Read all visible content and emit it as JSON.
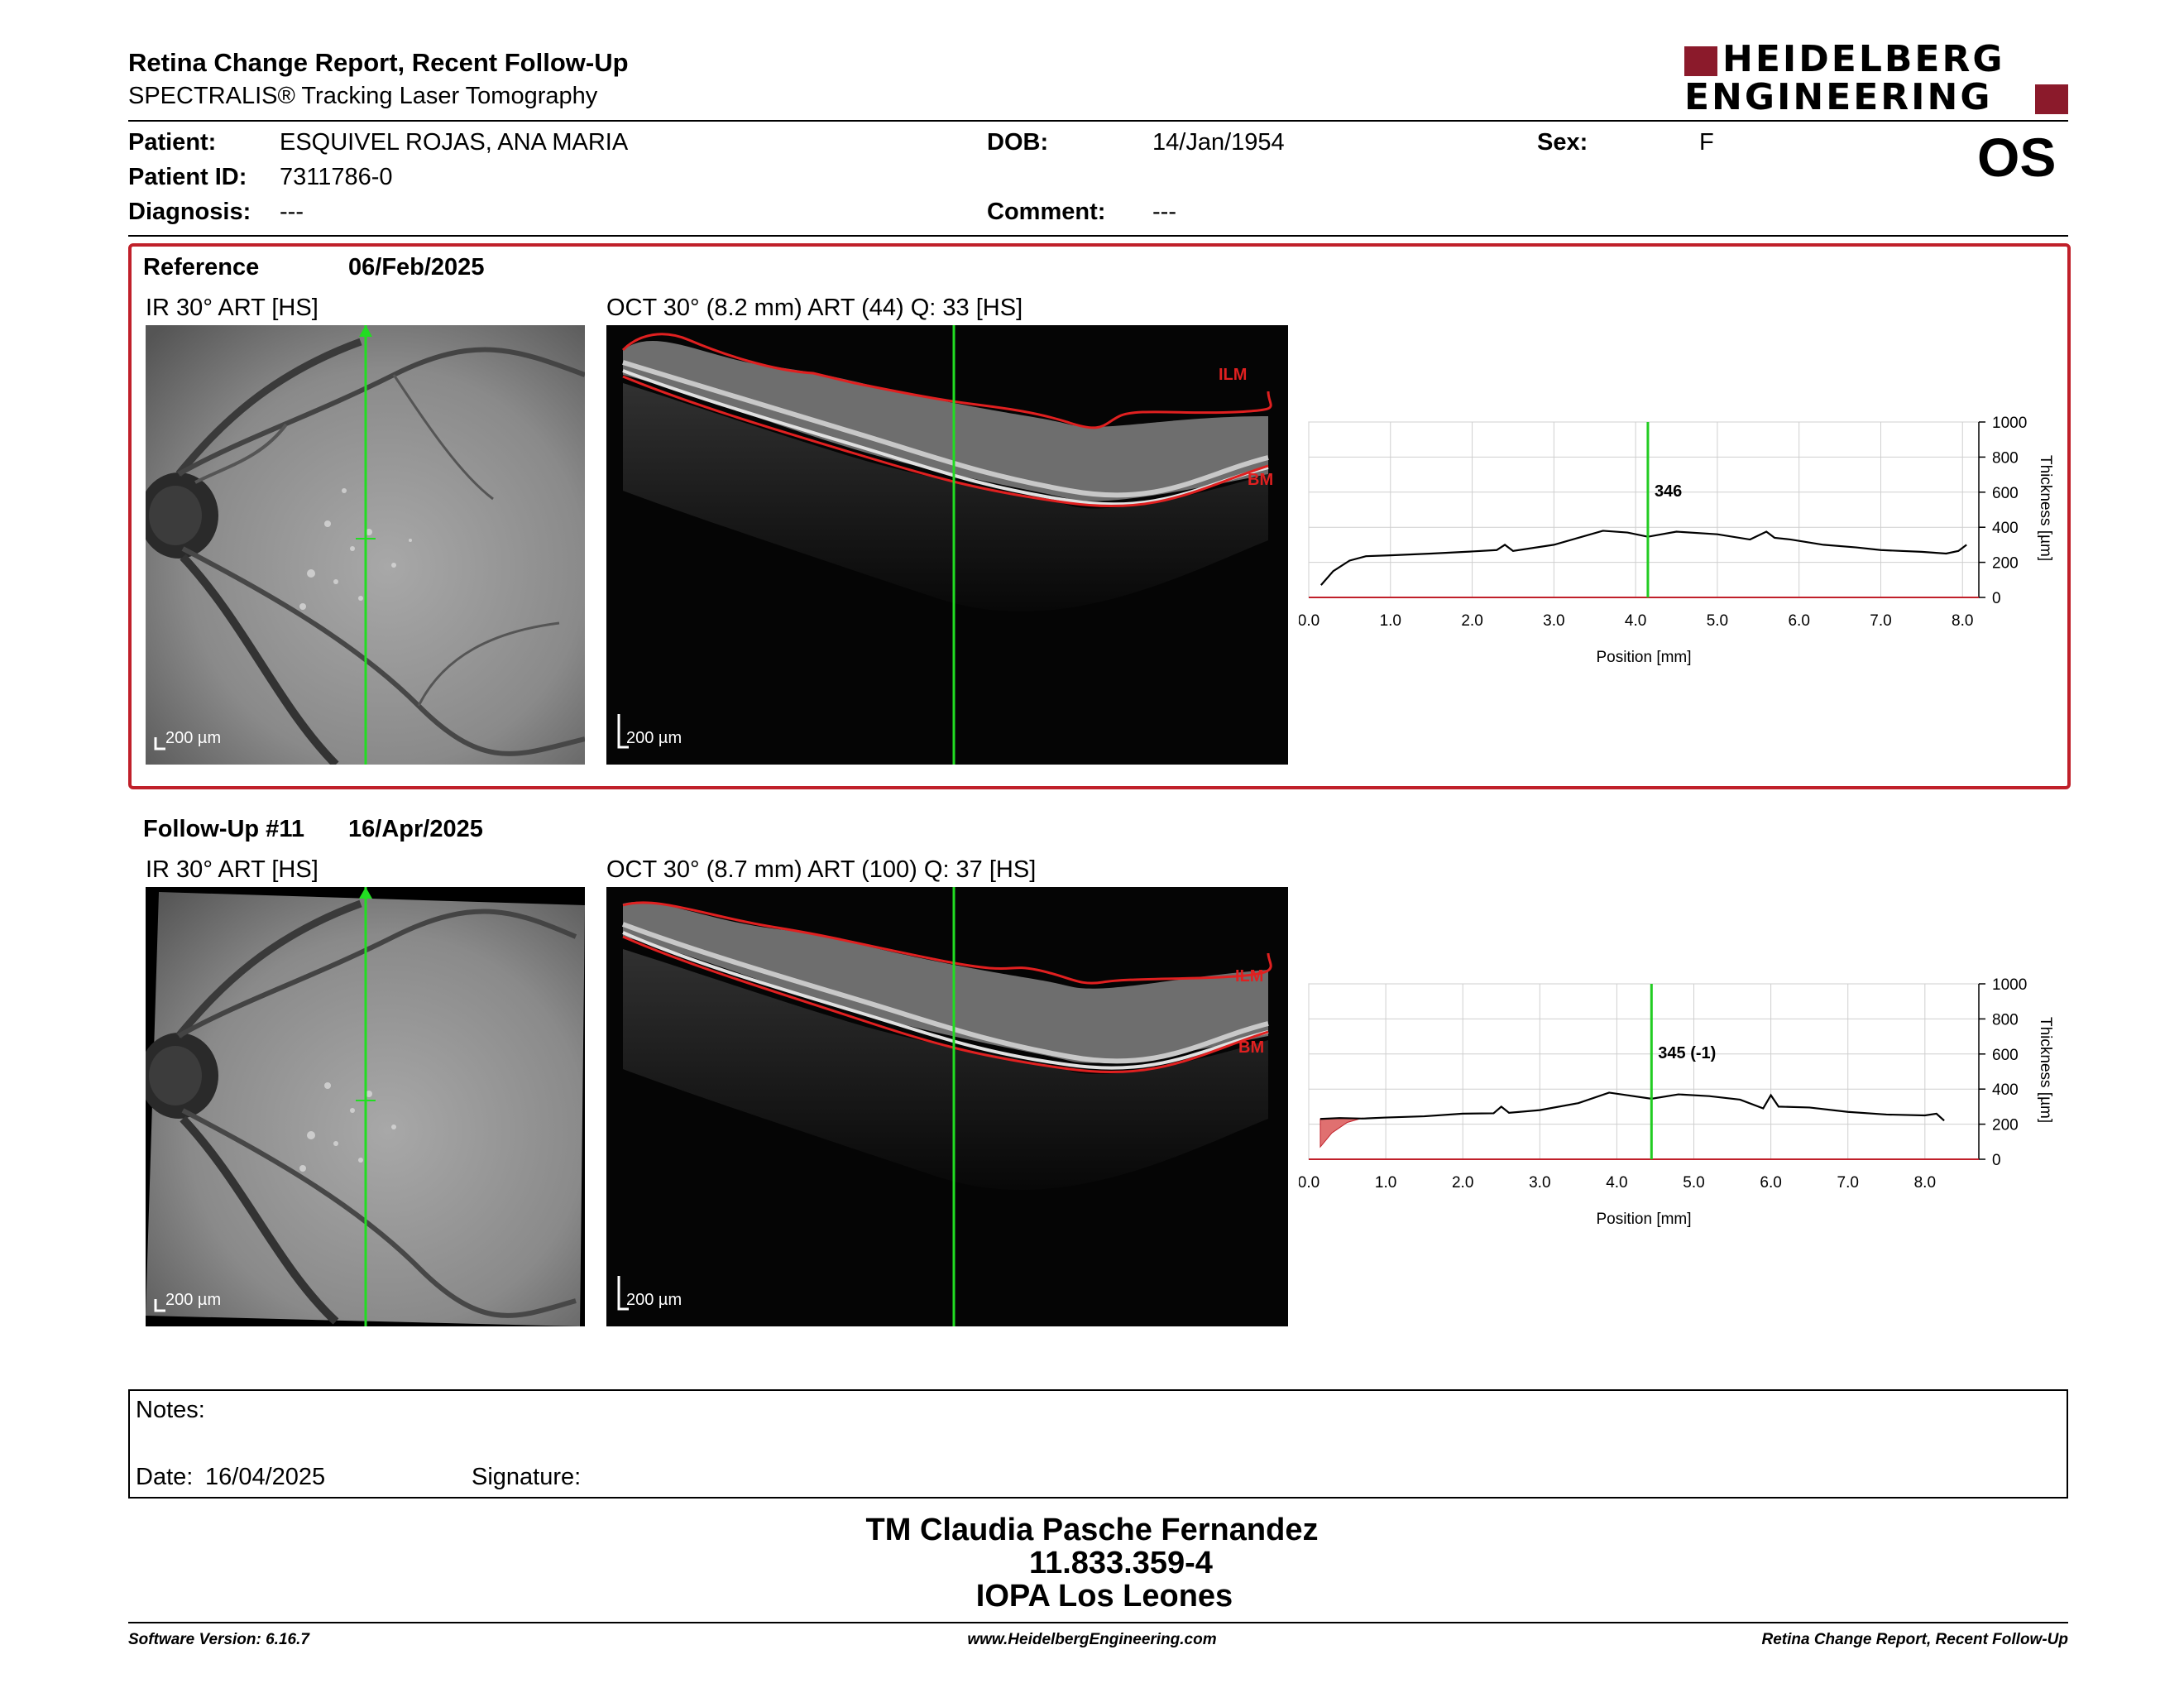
{
  "header": {
    "title": "Retina Change Report, Recent Follow-Up",
    "subtitle": "SPECTRALIS® Tracking Laser Tomography",
    "logo_line1": "HEIDELBERG",
    "logo_line2": "ENGINEERING",
    "eye": "OS"
  },
  "patient": {
    "patient_label": "Patient:",
    "patient_value": "ESQUIVEL ROJAS, ANA MARIA",
    "id_label": "Patient ID:",
    "id_value": "7311786-0",
    "diagnosis_label": "Diagnosis:",
    "diagnosis_value": "---",
    "dob_label": "DOB:",
    "dob_value": "14/Jan/1954",
    "comment_label": "Comment:",
    "comment_value": "---",
    "sex_label": "Sex:",
    "sex_value": "F"
  },
  "reference": {
    "label": "Reference",
    "date": "06/Feb/2025",
    "ir_caption": "IR 30° ART [HS]",
    "oct_caption": "OCT 30° (8.2 mm) ART (44) Q: 33 [HS]",
    "ir_scale": "200 µm",
    "oct_scale": "200 µm",
    "ilm_label": "ILM",
    "bm_label": "BM"
  },
  "followup": {
    "label": "Follow-Up #11",
    "date": "16/Apr/2025",
    "ir_caption": "IR 30° ART [HS]",
    "oct_caption": "OCT 30° (8.7 mm) ART (100) Q: 37 [HS]",
    "ir_scale": "200 µm",
    "oct_scale": "200 µm",
    "ilm_label": "ILM",
    "bm_label": "BM"
  },
  "chart_data": [
    {
      "type": "line",
      "xlabel": "Position [mm]",
      "ylabel": "Thickness [µm]",
      "xlim": [
        0,
        8.2
      ],
      "ylim": [
        0,
        1000
      ],
      "xticks": [
        "0.0",
        "1.0",
        "2.0",
        "3.0",
        "4.0",
        "5.0",
        "6.0",
        "7.0",
        "8.0"
      ],
      "yticks": [
        "0",
        "200",
        "400",
        "600",
        "800",
        "1000"
      ],
      "cursor_x": 4.15,
      "cursor_label": "346",
      "grid": true,
      "series": [
        {
          "color": "#000000",
          "x": [
            0.15,
            0.3,
            0.5,
            0.7,
            1.0,
            1.5,
            2.0,
            2.3,
            2.4,
            2.5,
            3.0,
            3.3,
            3.6,
            3.9,
            4.15,
            4.5,
            5.0,
            5.4,
            5.6,
            5.7,
            5.9,
            6.3,
            6.7,
            7.0,
            7.5,
            7.8,
            7.95,
            8.05
          ],
          "y": [
            70,
            150,
            210,
            235,
            240,
            250,
            262,
            270,
            300,
            265,
            300,
            340,
            380,
            370,
            346,
            375,
            360,
            330,
            375,
            340,
            330,
            300,
            285,
            270,
            260,
            250,
            265,
            300
          ]
        }
      ]
    },
    {
      "type": "line",
      "xlabel": "Position [mm]",
      "ylabel": "Thickness [µm]",
      "xlim": [
        0,
        8.7
      ],
      "ylim": [
        0,
        1000
      ],
      "xticks": [
        "0.0",
        "1.0",
        "2.0",
        "3.0",
        "4.0",
        "5.0",
        "6.0",
        "7.0",
        "8.0"
      ],
      "yticks": [
        "0",
        "200",
        "400",
        "600",
        "800",
        "1000"
      ],
      "cursor_x": 4.45,
      "cursor_label": "345 (-1)",
      "grid": true,
      "series": [
        {
          "color": "#000000",
          "x": [
            0.15,
            0.4,
            0.7,
            1.0,
            1.5,
            2.0,
            2.4,
            2.5,
            2.6,
            3.0,
            3.5,
            3.9,
            4.45,
            4.8,
            5.2,
            5.6,
            5.9,
            6.0,
            6.1,
            6.5,
            7.0,
            7.5,
            8.0,
            8.15,
            8.25
          ],
          "y": [
            230,
            235,
            232,
            238,
            245,
            260,
            262,
            300,
            265,
            280,
            320,
            380,
            345,
            370,
            360,
            340,
            290,
            365,
            300,
            295,
            270,
            255,
            250,
            260,
            220
          ]
        }
      ],
      "change_region": {
        "x": [
          0.15,
          0.3,
          0.5,
          0.7
        ],
        "y_baseline": [
          70,
          150,
          210,
          235
        ],
        "y_followup": [
          230,
          232,
          235,
          232
        ],
        "color": "#e07070"
      }
    }
  ],
  "notes": {
    "notes_label": "Notes:",
    "date_label": "Date:",
    "date_value": "16/04/2025",
    "signature_label": "Signature:"
  },
  "signatory": {
    "name": "TM Claudia Pasche Fernandez",
    "id": "11.833.359-4",
    "institution": "IOPA Los Leones"
  },
  "footer": {
    "software": "Software Version: 6.16.7",
    "website": "www.HeidelbergEngineering.com",
    "report": "Retina Change Report, Recent Follow-Up"
  }
}
